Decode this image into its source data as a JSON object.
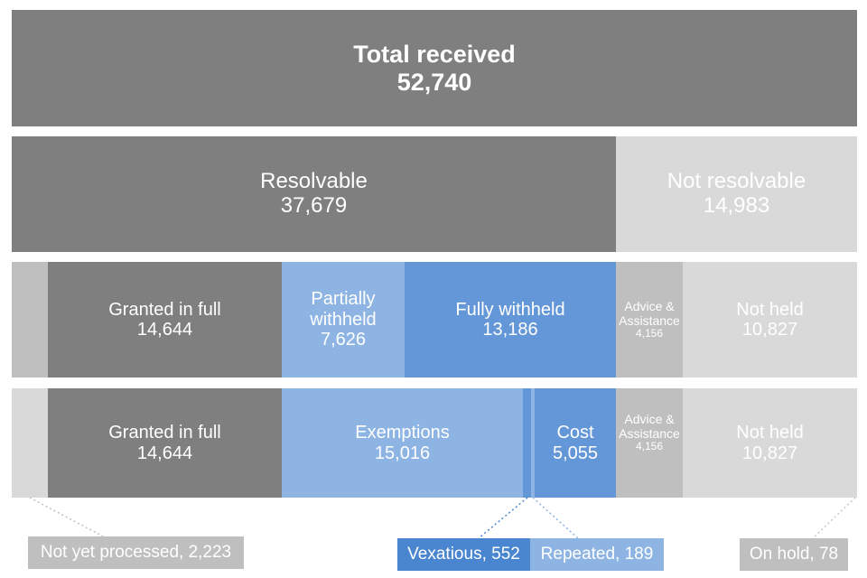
{
  "total": {
    "label": "Total received",
    "value": "52,740"
  },
  "level2": {
    "resolvable": {
      "label": "Resolvable",
      "value": "37,679"
    },
    "not_resolvable": {
      "label": "Not resolvable",
      "value": "14,983"
    }
  },
  "level3": {
    "granted": {
      "label": "Granted in full",
      "value": "14,644"
    },
    "partial": {
      "label_line1": "Partially",
      "label_line2": "withheld",
      "value": "7,626"
    },
    "fully": {
      "label": "Fully withheld",
      "value": "13,186"
    },
    "advice": {
      "label_line1": "Advice &",
      "label_line2": "Assistance",
      "value": "4,156"
    },
    "not_held": {
      "label": "Not held",
      "value": "10,827"
    }
  },
  "level4": {
    "granted": {
      "label": "Granted in full",
      "value": "14,644"
    },
    "exemptions": {
      "label": "Exemptions",
      "value": "15,016"
    },
    "cost": {
      "label": "Cost",
      "value": "5,055"
    },
    "advice": {
      "label_line1": "Advice &",
      "label_line2": "Assistance",
      "value": "4,156"
    },
    "not_held": {
      "label": "Not held",
      "value": "10,827"
    }
  },
  "callouts": {
    "not_yet_processed": "Not yet processed, 2,223",
    "vexatious": "Vexatious, 552",
    "repeated": "Repeated, 189",
    "on_hold": "On hold, 78"
  },
  "colors": {
    "dark_grey": "#7f7f7f",
    "light_grey": "#d9d9d9",
    "mid_grey": "#bfbfbf",
    "light_blue": "#8db4e2",
    "blue": "#6497d8"
  }
}
